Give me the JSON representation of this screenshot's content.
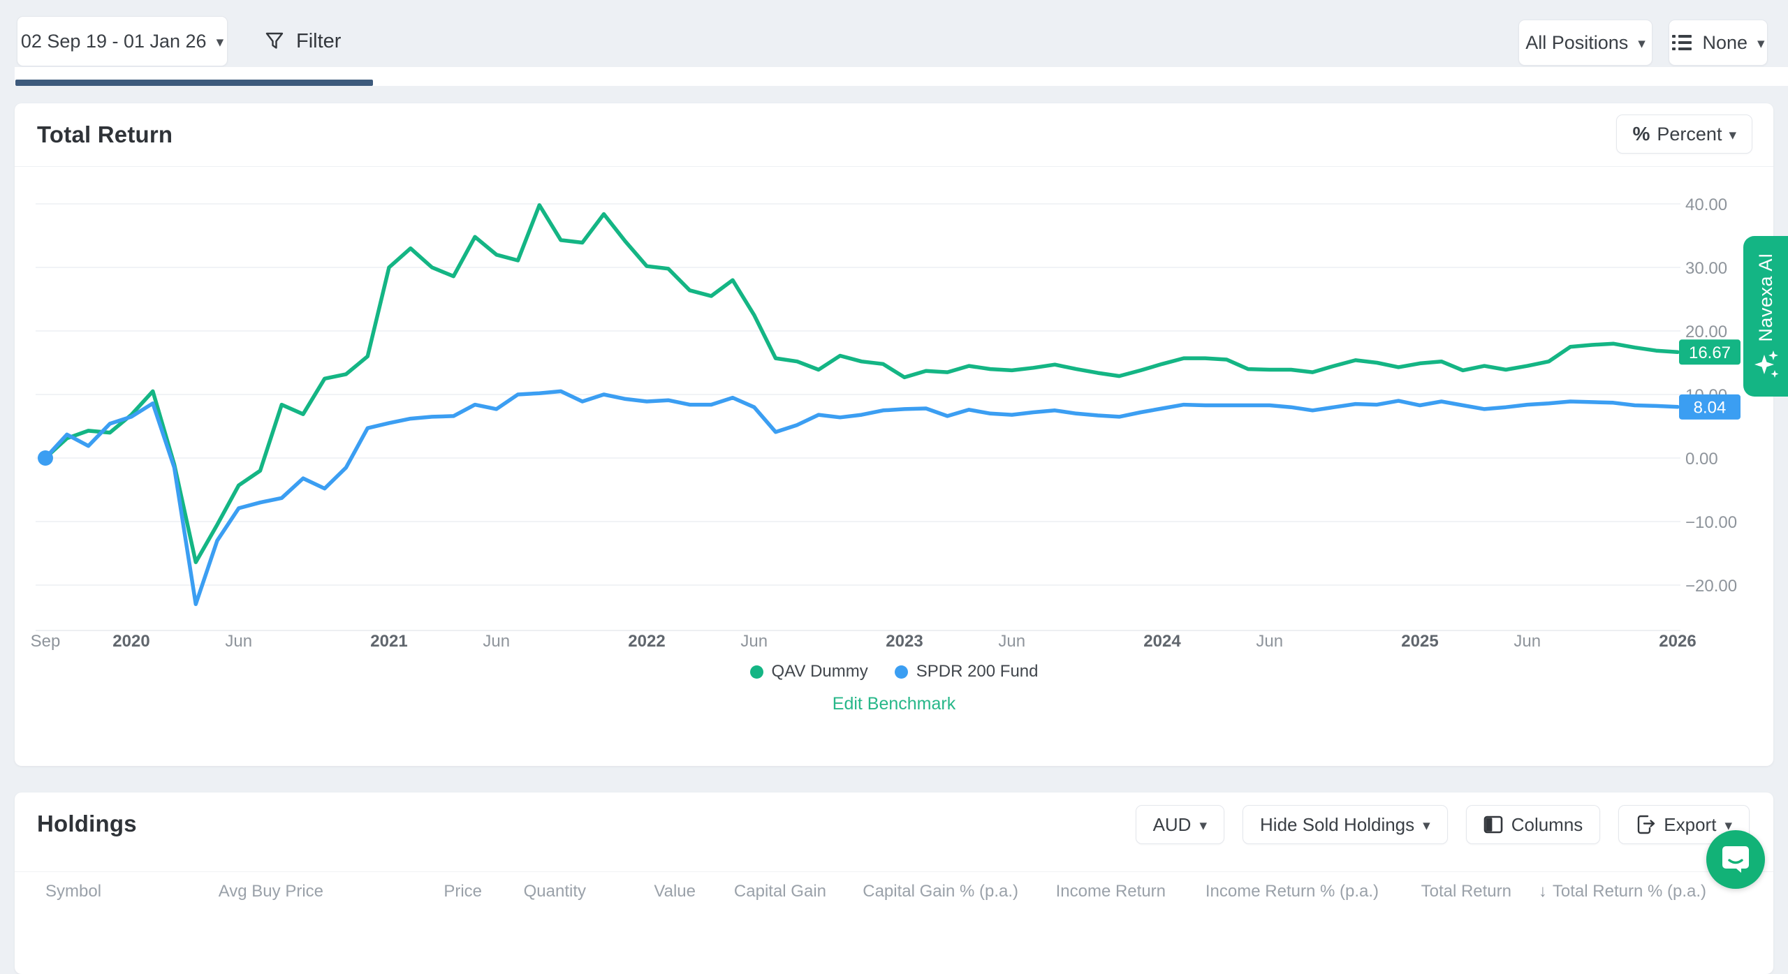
{
  "toolbar": {
    "date_range": "02 Sep 19 - 01 Jan 26",
    "filter_label": "Filter",
    "positions_label": "All Positions",
    "group_label": "None"
  },
  "chart_card": {
    "title": "Total Return",
    "unit_label": "Percent",
    "edit_benchmark_label": "Edit Benchmark",
    "edit_benchmark_color": "#27b789"
  },
  "navexa_ai": {
    "label": "Navexa AI",
    "color": "#14b584"
  },
  "chart_data": {
    "type": "line",
    "title": "Total Return",
    "ylabel": "Total Return %",
    "x_range": [
      "Sep 2019",
      "Jan 2026"
    ],
    "ylim": [
      -25,
      43
    ],
    "grid": true,
    "legend_position": "bottom",
    "y_ticks": [
      40,
      30,
      20,
      10,
      0,
      -10,
      -20
    ],
    "y_tick_labels": [
      "40.00",
      "30.00",
      "20.00",
      "10.00",
      "0.00",
      "−10.00",
      "−20.00"
    ],
    "x_ticks": [
      {
        "month_index": 0,
        "label": "Sep",
        "year": false
      },
      {
        "month_index": 4,
        "label": "2020",
        "year": true
      },
      {
        "month_index": 9,
        "label": "Jun",
        "year": false
      },
      {
        "month_index": 16,
        "label": "2021",
        "year": true
      },
      {
        "month_index": 21,
        "label": "Jun",
        "year": false
      },
      {
        "month_index": 28,
        "label": "2022",
        "year": true
      },
      {
        "month_index": 33,
        "label": "Jun",
        "year": false
      },
      {
        "month_index": 40,
        "label": "2023",
        "year": true
      },
      {
        "month_index": 45,
        "label": "Jun",
        "year": false
      },
      {
        "month_index": 52,
        "label": "2024",
        "year": true
      },
      {
        "month_index": 57,
        "label": "Jun",
        "year": false
      },
      {
        "month_index": 64,
        "label": "2025",
        "year": true
      },
      {
        "month_index": 69,
        "label": "Jun",
        "year": false
      },
      {
        "month_index": 76,
        "label": "2026",
        "year": true
      }
    ],
    "series": [
      {
        "name": "QAV Dummy",
        "color": "#14b584",
        "end_badge": "16.67",
        "start_dot": false,
        "values": [
          0,
          3.1,
          4.3,
          4.0,
          6.8,
          10.5,
          -1.0,
          -16.4,
          -10.5,
          -4.3,
          -2.0,
          8.4,
          6.9,
          12.5,
          13.2,
          16.0,
          30.0,
          33.0,
          30.0,
          28.6,
          34.8,
          32.0,
          31.1,
          39.8,
          34.3,
          33.9,
          38.4,
          34.1,
          30.2,
          29.8,
          26.4,
          25.5,
          28.0,
          22.5,
          15.7,
          15.2,
          13.9,
          16.1,
          15.2,
          14.8,
          12.7,
          13.7,
          13.5,
          14.5,
          14.0,
          13.8,
          14.2,
          14.7,
          14.0,
          13.4,
          12.9,
          13.8,
          14.8,
          15.7,
          15.7,
          15.5,
          14.0,
          13.9,
          13.9,
          13.5,
          14.5,
          15.4,
          15.0,
          14.3,
          14.9,
          15.2,
          13.8,
          14.5,
          13.9,
          14.5,
          15.2,
          17.5,
          17.8,
          18.0,
          17.4,
          16.9,
          16.67
        ]
      },
      {
        "name": "SPDR 200 Fund",
        "color": "#3b9ef2",
        "end_badge": "8.04",
        "start_dot": true,
        "values": [
          0,
          3.7,
          1.9,
          5.4,
          6.5,
          8.6,
          -1.5,
          -23.0,
          -13.0,
          -7.9,
          -7.0,
          -6.3,
          -3.2,
          -4.8,
          -1.5,
          4.7,
          5.5,
          6.2,
          6.5,
          6.6,
          8.4,
          7.7,
          10.0,
          10.2,
          10.5,
          8.9,
          10.0,
          9.3,
          8.9,
          9.1,
          8.4,
          8.4,
          9.5,
          8.0,
          4.1,
          5.2,
          6.8,
          6.4,
          6.8,
          7.5,
          7.7,
          7.8,
          6.6,
          7.6,
          7.0,
          6.8,
          7.2,
          7.5,
          7.0,
          6.7,
          6.5,
          7.2,
          7.8,
          8.4,
          8.3,
          8.3,
          8.3,
          8.3,
          8.0,
          7.5,
          8.0,
          8.5,
          8.4,
          9.0,
          8.3,
          8.9,
          8.3,
          7.7,
          8.0,
          8.4,
          8.6,
          8.9,
          8.8,
          8.7,
          8.3,
          8.2,
          8.04
        ]
      }
    ]
  },
  "holdings": {
    "title": "Holdings",
    "currency_label": "AUD",
    "sold_filter_label": "Hide Sold Holdings",
    "columns_label": "Columns",
    "export_label": "Export",
    "sort_icon": "↓",
    "sorted_column_index": 10,
    "table_headers": [
      "Symbol",
      "Avg Buy Price",
      "Price",
      "Quantity",
      "Value",
      "Capital Gain",
      "Capital Gain % (p.a.)",
      "Income Return",
      "Income Return % (p.a.)",
      "Total Return",
      "Total Return % (p.a.)"
    ]
  }
}
